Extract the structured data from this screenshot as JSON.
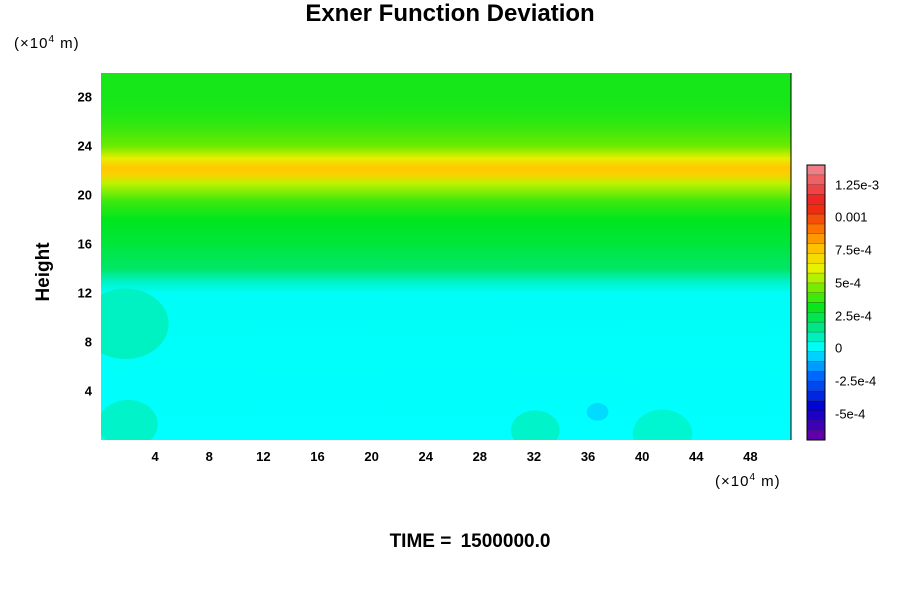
{
  "chart_data": {
    "type": "heatmap",
    "title": "Exner Function Deviation",
    "ylabel": "Height",
    "xunit": {
      "prefix": "(×10",
      "exp": "4",
      "suffix": " m)"
    },
    "yunit": {
      "prefix": "(×10",
      "exp": "4",
      "suffix": " m)"
    },
    "footer": {
      "label": "TIME =",
      "value": "1500000.0"
    },
    "xlim": [
      0,
      51
    ],
    "ylim": [
      0,
      30
    ],
    "xticks": [
      "4",
      "8",
      "12",
      "16",
      "20",
      "24",
      "28",
      "32",
      "36",
      "40",
      "44",
      "48"
    ],
    "yticks": [
      "4",
      "8",
      "12",
      "16",
      "20",
      "24",
      "28"
    ],
    "colorbar": {
      "range": [
        -0.0007,
        0.0014
      ],
      "tick_labels": [
        "1.25e-3",
        "0.001",
        "7.5e-4",
        "5e-4",
        "2.5e-4",
        "0",
        "-2.5e-4",
        "-5e-4"
      ],
      "tick_values": [
        0.00125,
        0.001,
        0.00075,
        0.0005,
        0.00025,
        0,
        -0.00025,
        -0.0005
      ]
    },
    "profile": {
      "heights": [
        0,
        12,
        13,
        14,
        16,
        18,
        19.5,
        21,
        21.7,
        22.3,
        23,
        24,
        25,
        26,
        27,
        28,
        30
      ],
      "values": [
        0,
        1e-05,
        8e-05,
        0.0002,
        0.00026,
        0.0003,
        0.00038,
        0.00055,
        0.00072,
        0.00075,
        0.00062,
        0.00045,
        0.0004,
        0.00036,
        0.00034,
        0.00033,
        0.00033
      ]
    },
    "features": [
      {
        "x": 1.8,
        "y": 9.5,
        "value": 8e-05
      },
      {
        "x": 2,
        "y": 1.3,
        "value": 7e-05
      },
      {
        "x": 32.1,
        "y": 0.8,
        "value": 7e-05
      },
      {
        "x": 41.5,
        "y": 0.5,
        "value": 6e-05
      },
      {
        "x": 36.7,
        "y": 2.3,
        "value": -5e-05
      }
    ]
  }
}
